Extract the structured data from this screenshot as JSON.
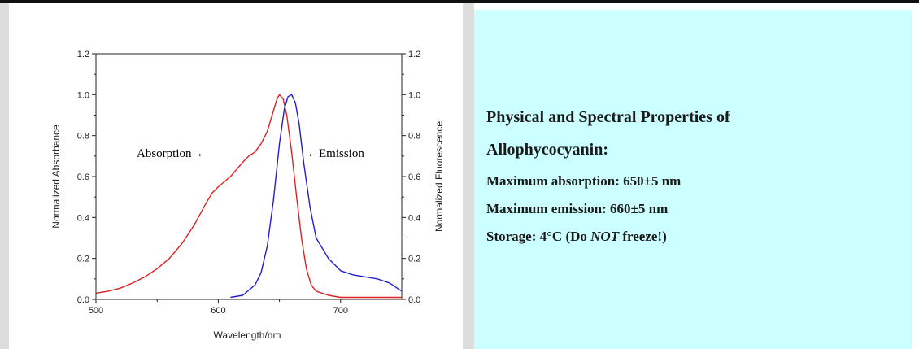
{
  "chart_data": {
    "type": "line",
    "xlabel": "Wavelength/nm",
    "ylabel_left": "Normalized Absorbance",
    "ylabel_right": "Normalized Fluorescence",
    "xlim": [
      500,
      750
    ],
    "ylim": [
      0,
      1.2
    ],
    "x_ticks": [
      "500",
      "600",
      "700"
    ],
    "y_ticks": [
      "0.0",
      "0.2",
      "0.4",
      "0.6",
      "0.8",
      "1.0",
      "1.2"
    ],
    "annotations": {
      "absorption": "Absorption→",
      "emission": "←Emission"
    },
    "series": [
      {
        "color": "#dd2222",
        "x": [
          500,
          510,
          520,
          530,
          540,
          550,
          560,
          570,
          580,
          590,
          595,
          600,
          610,
          620,
          625,
          630,
          635,
          640,
          645,
          648,
          650,
          653,
          656,
          660,
          664,
          668,
          672,
          676,
          680,
          690,
          700,
          720,
          750
        ],
        "y": [
          0.03,
          0.04,
          0.055,
          0.08,
          0.11,
          0.15,
          0.2,
          0.27,
          0.36,
          0.47,
          0.52,
          0.55,
          0.6,
          0.67,
          0.7,
          0.72,
          0.76,
          0.82,
          0.92,
          0.98,
          1.0,
          0.98,
          0.9,
          0.72,
          0.5,
          0.3,
          0.15,
          0.07,
          0.04,
          0.02,
          0.01,
          0.01,
          0.01
        ]
      },
      {
        "color": "#2020cc",
        "x": [
          610,
          620,
          630,
          635,
          640,
          645,
          650,
          654,
          657,
          660,
          663,
          666,
          670,
          675,
          680,
          690,
          700,
          710,
          720,
          730,
          740,
          750
        ],
        "y": [
          0.01,
          0.02,
          0.07,
          0.13,
          0.26,
          0.48,
          0.76,
          0.93,
          0.99,
          1.0,
          0.96,
          0.86,
          0.66,
          0.45,
          0.3,
          0.2,
          0.14,
          0.12,
          0.11,
          0.1,
          0.08,
          0.04
        ]
      }
    ]
  },
  "properties": {
    "heading_line1": "Physical and Spectral Properties of",
    "heading_line2": "Allophycocyanin:",
    "max_absorption": "Maximum absorption: 650±5 nm",
    "max_emission": "Maximum emission: 660±5 nm",
    "storage_prefix": "Storage: 4°C (Do ",
    "storage_emphasis": "NOT",
    "storage_suffix": " freeze!)"
  }
}
